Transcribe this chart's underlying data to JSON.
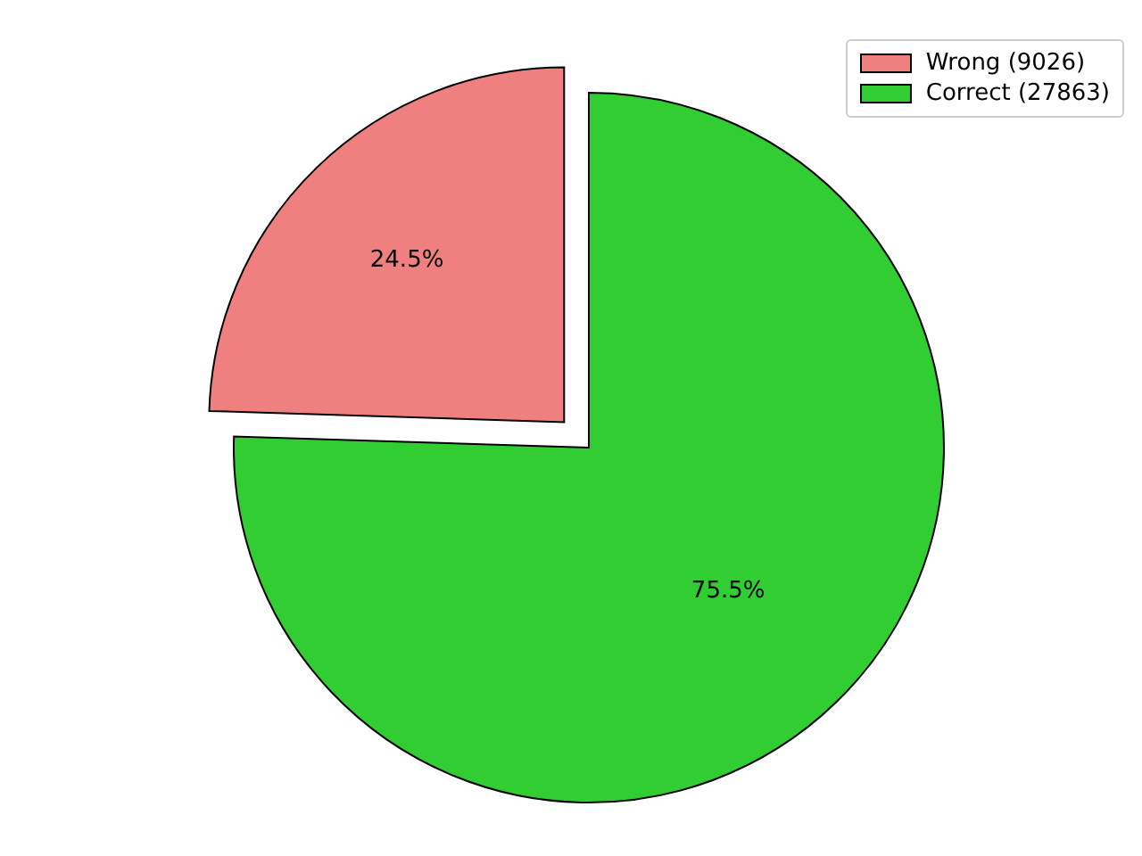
{
  "chart_data": {
    "type": "pie",
    "categories": [
      "Wrong (9026)",
      "Correct (27863)"
    ],
    "values": [
      24.5,
      75.5
    ],
    "colors": [
      "#f08080",
      "#32cd32"
    ],
    "value_labels": [
      "24.5%",
      "75.5%"
    ],
    "legend": "top right"
  }
}
